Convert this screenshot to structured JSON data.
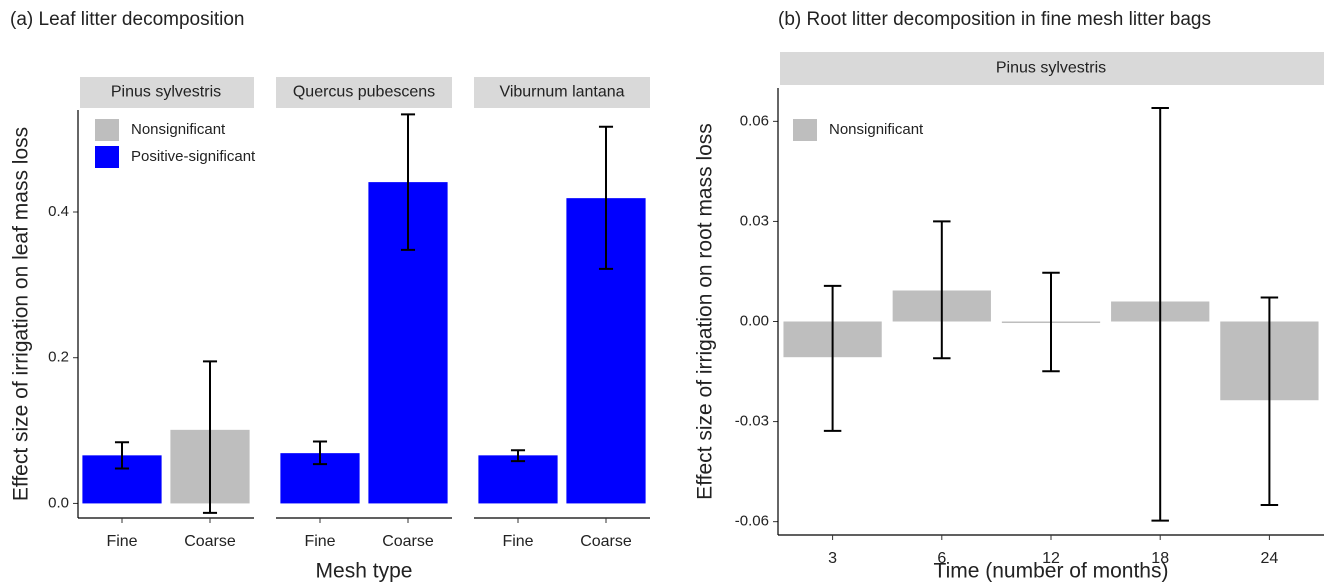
{
  "chart_data": [
    {
      "type": "bar",
      "title": "(a) Leaf litter decomposition",
      "y_label": "Effect size of irrigation on leaf mass loss",
      "x_label": "Mesh type",
      "legend": [
        {
          "name": "Nonsignificant",
          "color": "#bebebe"
        },
        {
          "name": "Positive-significant",
          "color": "#0000ff"
        }
      ],
      "facets": [
        {
          "name": "Pinus sylvestris",
          "categories": [
            "Fine",
            "Coarse"
          ],
          "values": [
            0.066,
            0.101
          ],
          "lower": [
            0.048,
            -0.013
          ],
          "upper": [
            0.084,
            0.195
          ],
          "legend_index": [
            1,
            0
          ]
        },
        {
          "name": "Quercus pubescens",
          "categories": [
            "Fine",
            "Coarse"
          ],
          "values": [
            0.069,
            0.441
          ],
          "lower": [
            0.054,
            0.348
          ],
          "upper": [
            0.085,
            0.534
          ],
          "legend_index": [
            1,
            1
          ]
        },
        {
          "name": "Viburnum lantana",
          "categories": [
            "Fine",
            "Coarse"
          ],
          "values": [
            0.066,
            0.419
          ],
          "lower": [
            0.058,
            0.322
          ],
          "upper": [
            0.073,
            0.517
          ],
          "legend_index": [
            1,
            1
          ]
        }
      ],
      "ylim": [
        -0.02,
        0.54
      ],
      "yticks": [
        {
          "value": 0,
          "label": "0.0"
        },
        0.2,
        0.4
      ]
    },
    {
      "type": "bar",
      "title": "(b) Root litter decomposition in fine mesh litter bags",
      "y_label": "Effect size of irrigation on root mass loss",
      "x_label": "Time (number of months)",
      "legend": [
        {
          "name": "Nonsignificant",
          "color": "#bebebe"
        }
      ],
      "facets": [
        {
          "name": "Pinus sylvestris",
          "categories": [
            "3",
            "6",
            "12",
            "18",
            "24"
          ],
          "values": [
            -0.0107,
            0.0093,
            -0.0003,
            0.006,
            -0.0236
          ],
          "lower": [
            -0.0328,
            -0.011,
            -0.0149,
            -0.0597,
            -0.055
          ],
          "upper": [
            0.0107,
            0.03,
            0.0146,
            0.064,
            0.0072
          ],
          "legend_index": [
            0,
            0,
            0,
            0,
            0
          ]
        }
      ],
      "ylim": [
        -0.064,
        0.07
      ],
      "yticks": [
        -0.06,
        -0.03,
        {
          "value": 0,
          "label": "0.00"
        },
        0.03,
        0.06
      ]
    }
  ]
}
